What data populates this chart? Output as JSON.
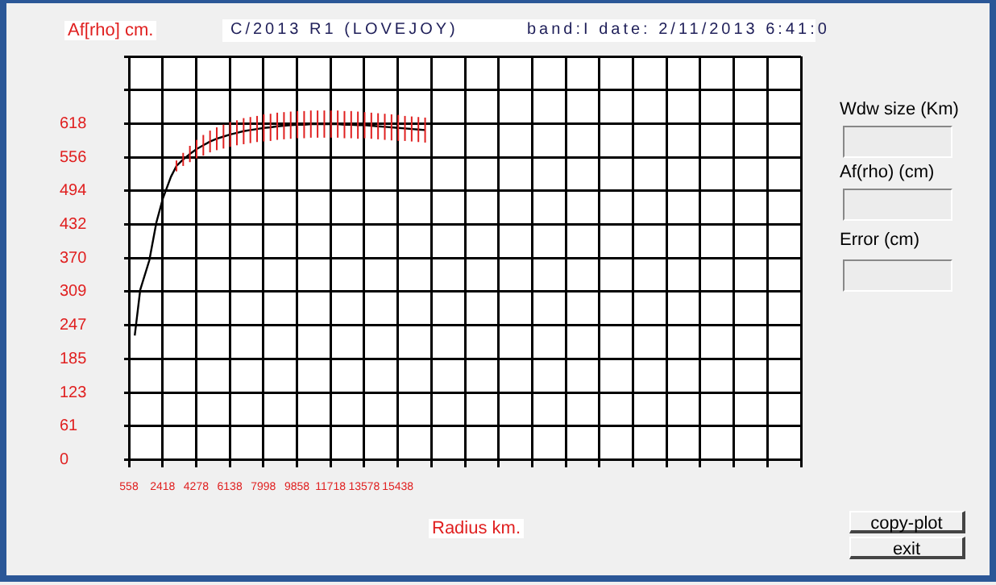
{
  "chart_data": {
    "type": "line",
    "title": "C/2013 R1 (LOVEJOY)",
    "subtitle": "band:I date: 2/11/2013 6:41:0",
    "xlabel": "Radius km.",
    "ylabel": "Af[rho] cm.",
    "annotations": [
      "Wdw size (Km)",
      "Af(rho) (cm)",
      "Error (cm)",
      "copy-plot",
      "exit"
    ],
    "xlim": [
      558,
      37758
    ],
    "xticks": [
      558,
      2418,
      4278,
      6138,
      7998,
      9858,
      11718,
      13578,
      15438,
      {
        "value": 17298,
        "label": null
      },
      {
        "value": 19158,
        "label": null
      },
      {
        "value": 21018,
        "label": null
      },
      {
        "value": 22878,
        "label": null
      },
      {
        "value": 24738,
        "label": null
      },
      {
        "value": 26598,
        "label": null
      },
      {
        "value": 28458,
        "label": null
      },
      {
        "value": 30318,
        "label": null
      },
      {
        "value": 32178,
        "label": null
      },
      {
        "value": 34038,
        "label": null
      },
      {
        "value": 35898,
        "label": null
      },
      {
        "value": 37758,
        "label": null
      }
    ],
    "ylim": [
      0,
      741.6
    ],
    "yticks": [
      0,
      61,
      123,
      185,
      247,
      309,
      370,
      432,
      494,
      556,
      618,
      {
        "value": 679.8,
        "label": null
      },
      {
        "value": 741.6,
        "label": null
      }
    ],
    "grid": true,
    "marker": "none",
    "line_style": "solid",
    "series": [
      {
        "color": "#000000",
        "x": [
          880,
          1184,
          1685,
          2078,
          2436,
          2883,
          3188,
          3560,
          3932,
          4304,
          4676,
          5048,
          5420,
          5792,
          6164,
          6536,
          6908,
          7280,
          7652,
          8024,
          8396,
          8768,
          9140,
          9512,
          9884,
          10256,
          10628,
          11000,
          11372,
          11744,
          12116,
          12488,
          12860,
          13232,
          13604,
          13976,
          14348,
          14720,
          15092,
          15464,
          15836,
          16208,
          16580,
          16952
        ],
        "values": [
          228,
          312,
          366,
          436,
          480,
          520,
          540,
          552,
          562,
          571,
          578,
          585,
          590,
          594,
          598,
          601,
          604,
          606,
          608,
          610,
          611,
          613,
          614,
          615,
          616,
          616,
          617,
          617,
          617,
          617,
          617,
          616,
          616,
          615,
          615,
          614,
          613,
          612,
          611,
          610,
          609,
          608,
          607,
          606
        ],
        "errors": [
          null,
          null,
          null,
          null,
          null,
          null,
          10,
          12,
          15,
          17,
          19,
          20,
          21,
          22,
          23,
          23,
          24,
          24,
          24,
          25,
          25,
          25,
          25,
          25,
          25,
          25,
          25,
          25,
          25,
          25,
          25,
          25,
          25,
          25,
          24,
          24,
          24,
          24,
          24,
          24,
          23,
          23,
          23,
          23
        ]
      }
    ]
  }
}
